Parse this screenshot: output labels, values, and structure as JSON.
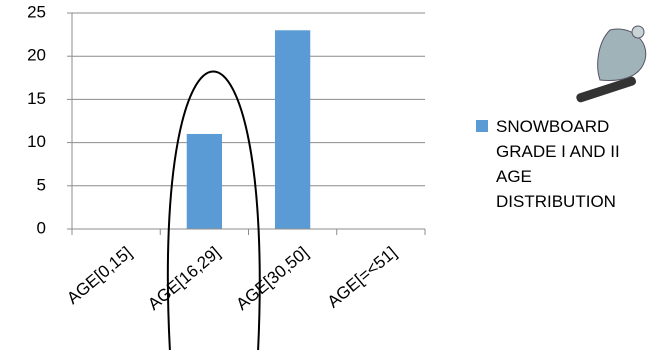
{
  "chart_data": {
    "type": "bar",
    "categories": [
      "AGE[0,15]",
      "AGE[16,29]",
      "AGE[30,50]",
      "AGE[=<51]"
    ],
    "series": [
      {
        "name": "SNOWBOARD GRADE I AND II AGE DISTRIBUTION",
        "color": "#5b9bd5",
        "values": [
          0,
          11,
          23,
          0
        ]
      }
    ],
    "ylim": [
      0,
      25
    ],
    "yticks": [
      0,
      5,
      10,
      15,
      20,
      25
    ],
    "grid": true,
    "legend": "right"
  }
}
